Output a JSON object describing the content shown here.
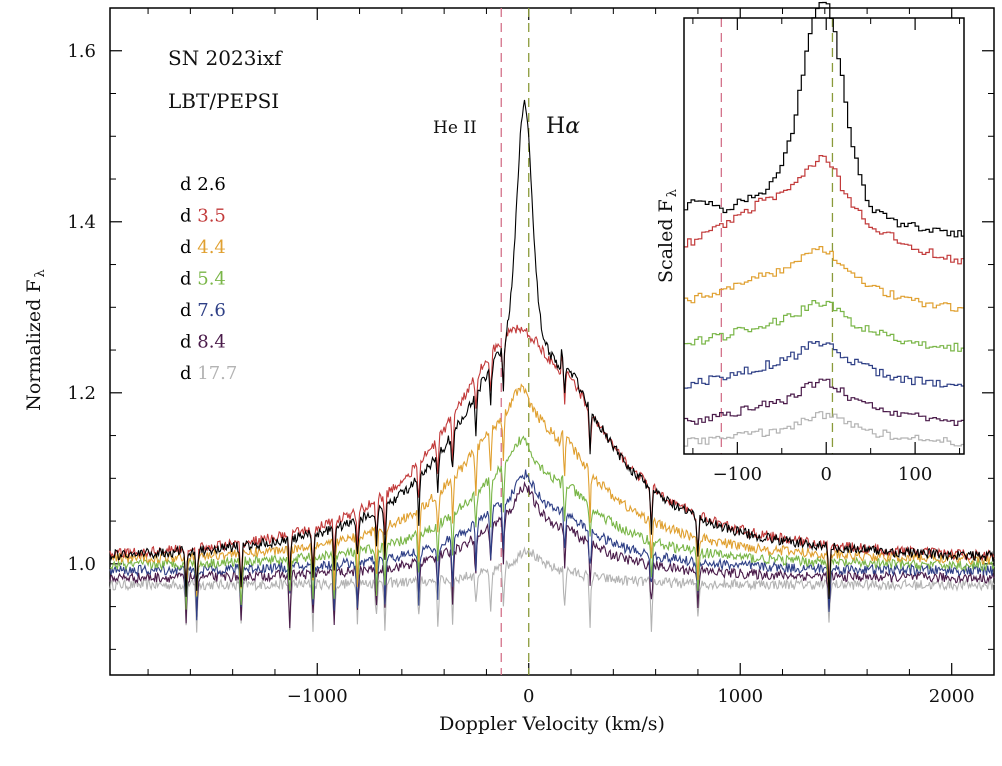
{
  "chart_data": [
    {
      "type": "line",
      "title": "",
      "object": "SN 2023ixf",
      "instrument": "LBT/PEPSI",
      "xlabel": "Doppler Velocity (km/s)",
      "ylabel": "Normalized F",
      "ylabel_subscript": "λ",
      "xlim": [
        -1980,
        2200
      ],
      "ylim": [
        0.87,
        1.65
      ],
      "xticks": [
        -1000,
        0,
        1000,
        2000
      ],
      "xtick_labels": [
        "−1000",
        "0",
        "1000",
        "2000"
      ],
      "yticks": [
        1.0,
        1.2,
        1.4,
        1.6
      ],
      "ytick_labels": [
        "1.0",
        "1.2",
        "1.4",
        "1.6"
      ],
      "legend_placement": "top-left",
      "reference_lines": [
        {
          "label": "He II",
          "x": -130,
          "color": "#d4728a"
        },
        {
          "label": "H",
          "label_greek": "α",
          "x": 0,
          "color": "#8a9a3a"
        }
      ],
      "series": [
        {
          "name": "d 2.6",
          "label_prefix": "d",
          "label_value": "2.6",
          "color": "#000000",
          "peak": 1.57,
          "peak_x": -20,
          "wing": 0.3,
          "width": 700,
          "offset": 1.0
        },
        {
          "name": "d 3.5",
          "label_prefix": "d",
          "label_value": "3.5",
          "color": "#c23a3a",
          "peak": 1.305,
          "peak_x": -50,
          "wing": 0.3,
          "width": 750,
          "offset": 1.0
        },
        {
          "name": "d 4.4",
          "label_prefix": "d",
          "label_value": "4.4",
          "color": "#e0a030",
          "peak": 1.225,
          "peak_x": -40,
          "wing": 0.2,
          "width": 650,
          "offset": 1.0
        },
        {
          "name": "d 5.4",
          "label_prefix": "d",
          "label_value": "5.4",
          "color": "#7ab648",
          "peak": 1.16,
          "peak_x": -30,
          "wing": 0.14,
          "width": 600,
          "offset": 0.995
        },
        {
          "name": "d 7.6",
          "label_prefix": "d",
          "label_value": "7.6",
          "color": "#2e3f86",
          "peak": 1.115,
          "peak_x": -20,
          "wing": 0.1,
          "width": 550,
          "offset": 0.99
        },
        {
          "name": "d 8.4",
          "label_prefix": "d",
          "label_value": "8.4",
          "color": "#4a1b4a",
          "peak": 1.1,
          "peak_x": -20,
          "wing": 0.09,
          "width": 520,
          "offset": 0.982
        },
        {
          "name": "d 17.7",
          "label_prefix": "d",
          "label_value": "17.7",
          "color": "#b3b3b3",
          "peak": 1.02,
          "peak_x": -10,
          "wing": 0.03,
          "width": 400,
          "offset": 0.975
        }
      ],
      "absorption_lines_x": [
        -1620,
        -1570,
        -1360,
        -1130,
        -1020,
        -920,
        -810,
        -720,
        -680,
        -520,
        -430,
        -360,
        -250,
        -180,
        -120,
        170,
        290,
        580,
        800,
        1420
      ]
    },
    {
      "type": "line",
      "inset": true,
      "ylabel": "Scaled F",
      "ylabel_subscript": "λ",
      "xlim": [
        -160,
        155
      ],
      "xticks": [
        -100,
        0,
        100
      ],
      "xtick_labels": [
        "−100",
        "0",
        "100"
      ],
      "reference_lines": [
        {
          "label": "He II",
          "x": -118,
          "color": "#d4728a"
        },
        {
          "label": "H",
          "x": 7,
          "color": "#8a9a3a"
        }
      ],
      "series": [
        {
          "name": "d 2.6",
          "color": "#000000"
        },
        {
          "name": "d 3.5",
          "color": "#c23a3a"
        },
        {
          "name": "d 4.4",
          "color": "#e0a030"
        },
        {
          "name": "d 5.4",
          "color": "#7ab648"
        },
        {
          "name": "d 7.6",
          "color": "#2e3f86"
        },
        {
          "name": "d 8.4",
          "color": "#4a1b4a"
        },
        {
          "name": "d 17.7",
          "color": "#b3b3b3"
        }
      ]
    }
  ]
}
